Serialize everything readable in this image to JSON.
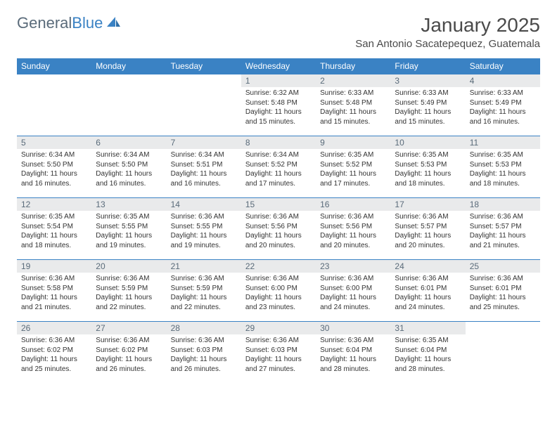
{
  "logo": {
    "text1": "General",
    "text2": "Blue"
  },
  "title": "January 2025",
  "location": "San Antonio Sacatepequez, Guatemala",
  "colors": {
    "header_bg": "#3a82c4",
    "header_text": "#ffffff",
    "daynum_bg": "#e9eaeb",
    "daynum_text": "#5a6b7a",
    "border": "#3a82c4",
    "logo_gray": "#5a6b7a",
    "logo_blue": "#3a82c4"
  },
  "day_labels": [
    "Sunday",
    "Monday",
    "Tuesday",
    "Wednesday",
    "Thursday",
    "Friday",
    "Saturday"
  ],
  "weeks": [
    [
      null,
      null,
      null,
      {
        "n": "1",
        "sunrise": "6:32 AM",
        "sunset": "5:48 PM",
        "daylight": "11 hours and 15 minutes."
      },
      {
        "n": "2",
        "sunrise": "6:33 AM",
        "sunset": "5:48 PM",
        "daylight": "11 hours and 15 minutes."
      },
      {
        "n": "3",
        "sunrise": "6:33 AM",
        "sunset": "5:49 PM",
        "daylight": "11 hours and 15 minutes."
      },
      {
        "n": "4",
        "sunrise": "6:33 AM",
        "sunset": "5:49 PM",
        "daylight": "11 hours and 16 minutes."
      }
    ],
    [
      {
        "n": "5",
        "sunrise": "6:34 AM",
        "sunset": "5:50 PM",
        "daylight": "11 hours and 16 minutes."
      },
      {
        "n": "6",
        "sunrise": "6:34 AM",
        "sunset": "5:50 PM",
        "daylight": "11 hours and 16 minutes."
      },
      {
        "n": "7",
        "sunrise": "6:34 AM",
        "sunset": "5:51 PM",
        "daylight": "11 hours and 16 minutes."
      },
      {
        "n": "8",
        "sunrise": "6:34 AM",
        "sunset": "5:52 PM",
        "daylight": "11 hours and 17 minutes."
      },
      {
        "n": "9",
        "sunrise": "6:35 AM",
        "sunset": "5:52 PM",
        "daylight": "11 hours and 17 minutes."
      },
      {
        "n": "10",
        "sunrise": "6:35 AM",
        "sunset": "5:53 PM",
        "daylight": "11 hours and 18 minutes."
      },
      {
        "n": "11",
        "sunrise": "6:35 AM",
        "sunset": "5:53 PM",
        "daylight": "11 hours and 18 minutes."
      }
    ],
    [
      {
        "n": "12",
        "sunrise": "6:35 AM",
        "sunset": "5:54 PM",
        "daylight": "11 hours and 18 minutes."
      },
      {
        "n": "13",
        "sunrise": "6:35 AM",
        "sunset": "5:55 PM",
        "daylight": "11 hours and 19 minutes."
      },
      {
        "n": "14",
        "sunrise": "6:36 AM",
        "sunset": "5:55 PM",
        "daylight": "11 hours and 19 minutes."
      },
      {
        "n": "15",
        "sunrise": "6:36 AM",
        "sunset": "5:56 PM",
        "daylight": "11 hours and 20 minutes."
      },
      {
        "n": "16",
        "sunrise": "6:36 AM",
        "sunset": "5:56 PM",
        "daylight": "11 hours and 20 minutes."
      },
      {
        "n": "17",
        "sunrise": "6:36 AM",
        "sunset": "5:57 PM",
        "daylight": "11 hours and 20 minutes."
      },
      {
        "n": "18",
        "sunrise": "6:36 AM",
        "sunset": "5:57 PM",
        "daylight": "11 hours and 21 minutes."
      }
    ],
    [
      {
        "n": "19",
        "sunrise": "6:36 AM",
        "sunset": "5:58 PM",
        "daylight": "11 hours and 21 minutes."
      },
      {
        "n": "20",
        "sunrise": "6:36 AM",
        "sunset": "5:59 PM",
        "daylight": "11 hours and 22 minutes."
      },
      {
        "n": "21",
        "sunrise": "6:36 AM",
        "sunset": "5:59 PM",
        "daylight": "11 hours and 22 minutes."
      },
      {
        "n": "22",
        "sunrise": "6:36 AM",
        "sunset": "6:00 PM",
        "daylight": "11 hours and 23 minutes."
      },
      {
        "n": "23",
        "sunrise": "6:36 AM",
        "sunset": "6:00 PM",
        "daylight": "11 hours and 24 minutes."
      },
      {
        "n": "24",
        "sunrise": "6:36 AM",
        "sunset": "6:01 PM",
        "daylight": "11 hours and 24 minutes."
      },
      {
        "n": "25",
        "sunrise": "6:36 AM",
        "sunset": "6:01 PM",
        "daylight": "11 hours and 25 minutes."
      }
    ],
    [
      {
        "n": "26",
        "sunrise": "6:36 AM",
        "sunset": "6:02 PM",
        "daylight": "11 hours and 25 minutes."
      },
      {
        "n": "27",
        "sunrise": "6:36 AM",
        "sunset": "6:02 PM",
        "daylight": "11 hours and 26 minutes."
      },
      {
        "n": "28",
        "sunrise": "6:36 AM",
        "sunset": "6:03 PM",
        "daylight": "11 hours and 26 minutes."
      },
      {
        "n": "29",
        "sunrise": "6:36 AM",
        "sunset": "6:03 PM",
        "daylight": "11 hours and 27 minutes."
      },
      {
        "n": "30",
        "sunrise": "6:36 AM",
        "sunset": "6:04 PM",
        "daylight": "11 hours and 28 minutes."
      },
      {
        "n": "31",
        "sunrise": "6:35 AM",
        "sunset": "6:04 PM",
        "daylight": "11 hours and 28 minutes."
      },
      null
    ]
  ]
}
